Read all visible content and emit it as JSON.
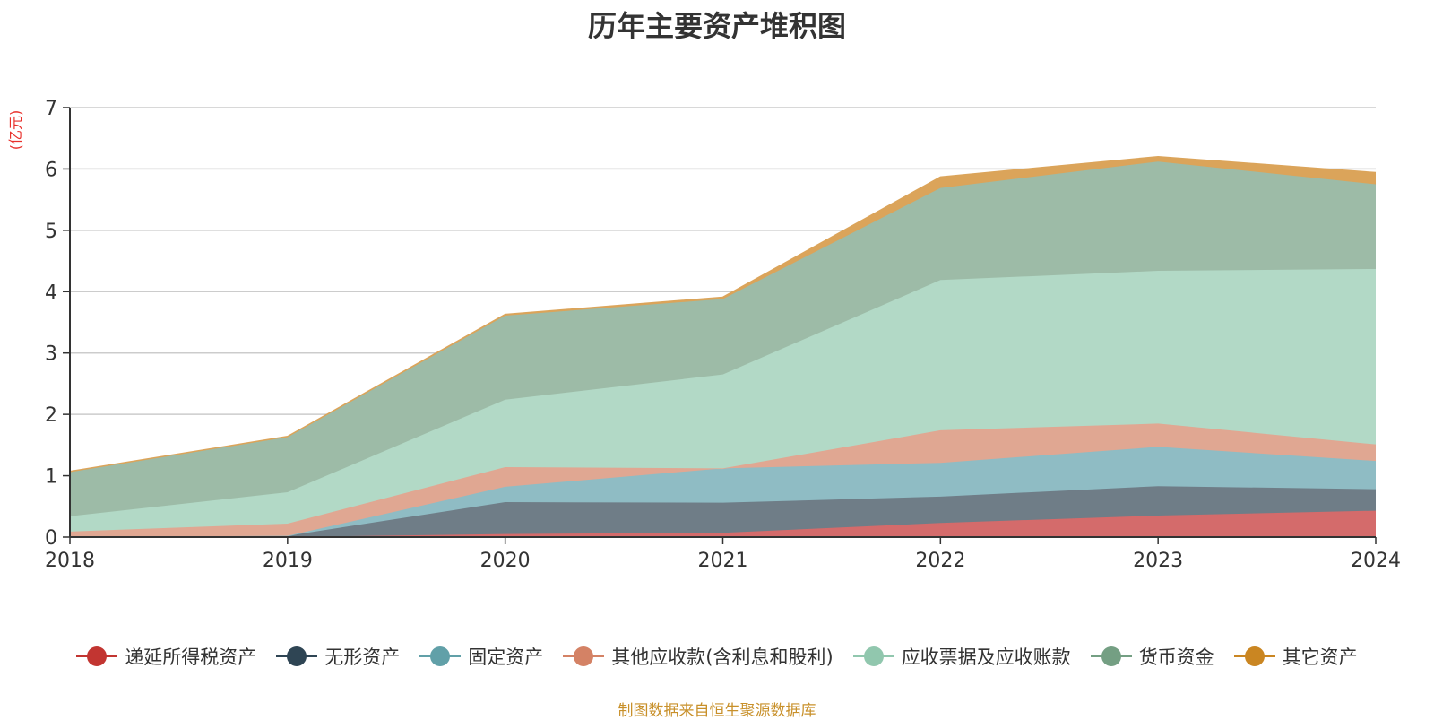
{
  "chart_data": {
    "type": "area",
    "stacked": true,
    "title": "历年主要资产堆积图",
    "y_unit_label": "(亿元)",
    "x": [
      "2018",
      "2019",
      "2020",
      "2021",
      "2022",
      "2023",
      "2024"
    ],
    "ylim": [
      0,
      7
    ],
    "yticks": [
      0,
      1,
      2,
      3,
      4,
      5,
      6,
      7
    ],
    "grid": true,
    "legend_position": "bottom",
    "series": [
      {
        "name": "递延所得税资产",
        "color": "#c23531",
        "fill": "#d46b6b",
        "values": [
          0.0,
          0.0,
          0.05,
          0.07,
          0.23,
          0.35,
          0.43
        ]
      },
      {
        "name": "无形资产",
        "color": "#2f4554",
        "fill": "#6f7d87",
        "values": [
          0.0,
          0.02,
          0.52,
          0.49,
          0.43,
          0.48,
          0.35
        ]
      },
      {
        "name": "固定资产",
        "color": "#61a0a8",
        "fill": "#8fbcc4",
        "values": [
          0.0,
          0.0,
          0.25,
          0.56,
          0.55,
          0.64,
          0.46
        ]
      },
      {
        "name": "其他应收款(含利息和股利)",
        "color": "#d48265",
        "fill": "#e0a792",
        "values": [
          0.09,
          0.2,
          0.32,
          0.0,
          0.53,
          0.38,
          0.27
        ]
      },
      {
        "name": "应收票据及应收账款",
        "color": "#91c7ae",
        "fill": "#b2d9c6",
        "values": [
          0.25,
          0.51,
          1.1,
          1.53,
          2.45,
          2.49,
          2.86
        ]
      },
      {
        "name": "货币资金",
        "color": "#749f83",
        "fill": "#9dbba7",
        "values": [
          0.72,
          0.9,
          1.37,
          1.23,
          1.5,
          1.78,
          1.38
        ]
      },
      {
        "name": "其它资产",
        "color": "#ca8622",
        "fill": "#dba45a",
        "values": [
          0.01,
          0.01,
          0.02,
          0.03,
          0.18,
          0.08,
          0.19
        ]
      }
    ]
  },
  "source_note": "制图数据来自恒生聚源数据库"
}
